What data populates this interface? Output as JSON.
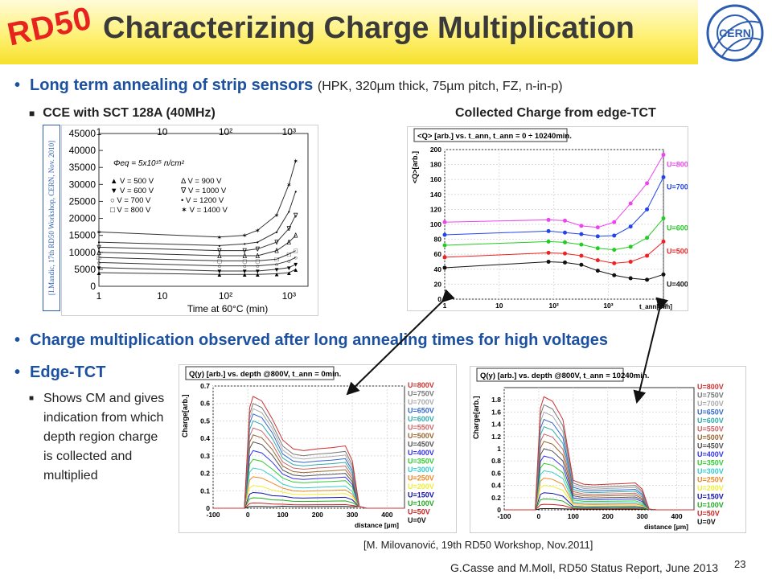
{
  "slide": {
    "logo_text": "RD50",
    "title": "Characterizing Charge Multiplication",
    "cern_logo": "CERN",
    "bullet1_main": "Long term annealing of strip sensors",
    "bullet1_detail": "(HPK, 320µm thick, 75µm pitch, FZ, n-in-p)",
    "sub1": "CCE with SCT 128A (40MHz)",
    "sub2": "Collected Charge from edge-TCT",
    "credit_vertical": "[I.Mandic, 17th RD50 Workshop, CERN, Nov. 2010]",
    "bullet2": "Charge multiplication observed after long annealing times for high voltages",
    "bullet3": "Edge-TCT",
    "edge_text": "Shows CM and gives indication from which depth region charge is collected and multiplied",
    "credit_bottom": "[M. Milovanović, 19th RD50 Workshop, Nov.2011]",
    "footer": "G.Casse and M.Moll, RD50 Status Report, June 2013",
    "page_number": "23"
  },
  "chart_data": [
    {
      "type": "line",
      "xscale": "log",
      "xlabel": "Time at 60°C (min)",
      "xlim": [
        1,
        2000
      ],
      "ylim": [
        0,
        45000
      ],
      "x_ticks": [
        "1",
        "10",
        "10²",
        "10³"
      ],
      "y_ticks": [
        "0",
        "5000",
        "10000",
        "15000",
        "20000",
        "25000",
        "30000",
        "35000",
        "40000",
        "45000"
      ],
      "annotation": "Φeq = 5x10¹⁵ n/cm²",
      "legend": [
        "▲ V = 500 V",
        "▼ V = 600 V",
        "○ V = 700 V",
        "□ V = 800 V",
        "Δ V = 900 V",
        "∇ V = 1000 V",
        "• V = 1200 V",
        "✶ V = 1400 V"
      ],
      "x": [
        1,
        80,
        200,
        320,
        640,
        1000,
        1280
      ],
      "series": [
        {
          "name": "V = 500 V",
          "values": [
            4000,
            3500,
            3500,
            3500,
            3700,
            4000,
            5000
          ]
        },
        {
          "name": "V = 600 V",
          "values": [
            5500,
            4500,
            4500,
            4500,
            5000,
            5500,
            6500
          ]
        },
        {
          "name": "V = 700 V",
          "values": [
            7000,
            6000,
            6000,
            6000,
            6500,
            7500,
            8500
          ]
        },
        {
          "name": "V = 800 V",
          "values": [
            8500,
            7500,
            7500,
            7500,
            8000,
            9500,
            10500
          ]
        },
        {
          "name": "V = 900 V",
          "values": [
            10000,
            9000,
            9000,
            9000,
            10500,
            13000,
            15000
          ]
        },
        {
          "name": "V = 1000 V",
          "values": [
            11500,
            10500,
            10500,
            11000,
            13000,
            17000,
            21000
          ]
        },
        {
          "name": "V = 1200 V",
          "values": [
            13000,
            12000,
            12500,
            13000,
            16000,
            22000,
            28000
          ]
        },
        {
          "name": "V = 1400 V",
          "values": [
            16000,
            14500,
            15000,
            16500,
            21000,
            30000,
            37000
          ]
        }
      ]
    },
    {
      "type": "line",
      "xscale": "log",
      "title": "<Q> [arb.] vs. t_ann, t_ann = 0 ÷ 10240min.",
      "xlabel": "t_ann[min]",
      "ylabel": "<Q>[arb.]",
      "xlim": [
        1,
        10240
      ],
      "ylim": [
        0,
        200
      ],
      "x_ticks": [
        "1",
        "10",
        "10²",
        "10³",
        "10⁴"
      ],
      "y_ticks": [
        "0",
        "20",
        "40",
        "60",
        "80",
        "100",
        "120",
        "140",
        "160",
        "180",
        "200"
      ],
      "x": [
        1,
        80,
        160,
        320,
        640,
        1280,
        2560,
        5120,
        10240
      ],
      "series": [
        {
          "name": "U=800V",
          "color": "#ee44ee",
          "values": [
            103,
            106,
            105,
            98,
            96,
            103,
            128,
            155,
            193
          ]
        },
        {
          "name": "U=700V",
          "color": "#2244ee",
          "values": [
            86,
            91,
            89,
            87,
            84,
            85,
            97,
            120,
            163
          ]
        },
        {
          "name": "U=600V",
          "color": "#22cc22",
          "values": [
            72,
            77,
            76,
            73,
            68,
            66,
            70,
            82,
            108
          ]
        },
        {
          "name": "U=500V",
          "color": "#ee2222",
          "values": [
            56,
            62,
            61,
            58,
            52,
            48,
            50,
            58,
            77
          ]
        },
        {
          "name": "U=400V",
          "color": "#111111",
          "values": [
            42,
            50,
            49,
            46,
            38,
            32,
            28,
            26,
            33
          ]
        }
      ]
    },
    {
      "type": "line",
      "title": "Q(y) [arb.] vs. depth @800V, t_ann = 0min.",
      "xlabel": "distance [µm]",
      "ylabel": "Charge[arb.]",
      "xlim": [
        -100,
        450
      ],
      "ylim": [
        0,
        0.7
      ],
      "x_ticks": [
        "-100",
        "0",
        "100",
        "200",
        "300",
        "400"
      ],
      "y_ticks": [
        "0",
        "0.1",
        "0.2",
        "0.3",
        "0.4",
        "0.5",
        "0.6",
        "0.7"
      ],
      "legend": [
        "U=800V",
        "U=750V",
        "U=700V",
        "U=650V",
        "U=600V",
        "U=550V",
        "U=500V",
        "U=450V",
        "U=400V",
        "U=350V",
        "U=300V",
        "U=250V",
        "U=200V",
        "U=150V",
        "U=100V",
        "U=50V",
        "U=0V"
      ],
      "peaks": [
        0.64,
        0.6,
        0.57,
        0.54,
        0.5,
        0.46,
        0.42,
        0.38,
        0.33,
        0.28,
        0.23,
        0.18,
        0.13,
        0.09,
        0.06,
        0.03,
        0.01
      ],
      "plateaus": [
        0.34,
        0.31,
        0.29,
        0.27,
        0.25,
        0.23,
        0.21,
        0.19,
        0.17,
        0.15,
        0.12,
        0.1,
        0.08,
        0.06,
        0.04,
        0.02,
        0.01
      ]
    },
    {
      "type": "line",
      "title": "Q(y) [arb.] vs. depth @800V, t_ann = 10240min.",
      "xlabel": "distance [µm]",
      "ylabel": "Charge[arb.]",
      "xlim": [
        -100,
        450
      ],
      "ylim": [
        0,
        2.0
      ],
      "x_ticks": [
        "-100",
        "0",
        "100",
        "200",
        "300",
        "400"
      ],
      "y_ticks": [
        "0",
        "0.2",
        "0.4",
        "0.6",
        "0.8",
        "1",
        "1.2",
        "1.4",
        "1.6",
        "1.8"
      ],
      "legend": [
        "U=800V",
        "U=750V",
        "U=700V",
        "U=650V",
        "U=600V",
        "U=550V",
        "U=500V",
        "U=450V",
        "U=400V",
        "U=350V",
        "U=300V",
        "U=250V",
        "U=200V",
        "U=150V",
        "U=100V",
        "U=50V",
        "U=0V"
      ],
      "peaks": [
        1.85,
        1.72,
        1.6,
        1.48,
        1.36,
        1.24,
        1.12,
        1.0,
        0.88,
        0.76,
        0.64,
        0.52,
        0.4,
        0.28,
        0.18,
        0.09,
        0.02
      ],
      "plateaus": [
        0.42,
        0.38,
        0.35,
        0.32,
        0.29,
        0.26,
        0.23,
        0.2,
        0.17,
        0.14,
        0.11,
        0.09,
        0.07,
        0.05,
        0.03,
        0.02,
        0.01
      ]
    }
  ],
  "colors": {
    "title_bar": "#fff176",
    "rd50_red": "#e6231f",
    "bullet_blue": "#1c50a0",
    "legend_colors": [
      "#cc3333",
      "#777777",
      "#aaaaaa",
      "#3366cc",
      "#33aaaa",
      "#cc6666",
      "#996633",
      "#555555",
      "#3333ee",
      "#33cc33",
      "#33cccc",
      "#ee8822",
      "#eeee33",
      "#1111aa",
      "#22aa22",
      "#cc2222",
      "#111111"
    ]
  }
}
